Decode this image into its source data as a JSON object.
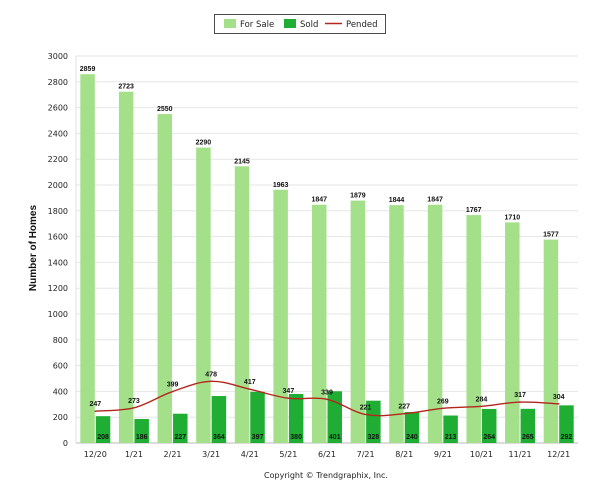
{
  "chart_data": {
    "type": "bar",
    "categories": [
      "12/20",
      "1/21",
      "2/21",
      "3/21",
      "4/21",
      "5/21",
      "6/21",
      "7/21",
      "8/21",
      "9/21",
      "10/21",
      "11/21",
      "12/21"
    ],
    "series": [
      {
        "name": "For Sale",
        "kind": "bar",
        "color": "#a4e08a",
        "values": [
          2859,
          2723,
          2550,
          2290,
          2145,
          1963,
          1847,
          1879,
          1844,
          1847,
          1767,
          1710,
          1577
        ]
      },
      {
        "name": "Sold",
        "kind": "bar",
        "color": "#1fae33",
        "values": [
          208,
          186,
          227,
          364,
          397,
          380,
          401,
          328,
          240,
          213,
          264,
          265,
          292
        ]
      },
      {
        "name": "Pended",
        "kind": "line",
        "color": "#b3261e",
        "values": [
          247,
          273,
          399,
          478,
          417,
          347,
          339,
          221,
          227,
          269,
          284,
          317,
          304
        ]
      }
    ],
    "ylabel": "Number of Homes",
    "ylim": [
      0,
      3000
    ],
    "yticks": [
      0,
      200,
      400,
      600,
      800,
      1000,
      1200,
      1400,
      1600,
      1800,
      2000,
      2200,
      2400,
      2600,
      2800,
      3000
    ],
    "grid": true,
    "legend_position": "top-center"
  },
  "footer": {
    "copyright": "Copyright © Trendgraphix, Inc."
  }
}
